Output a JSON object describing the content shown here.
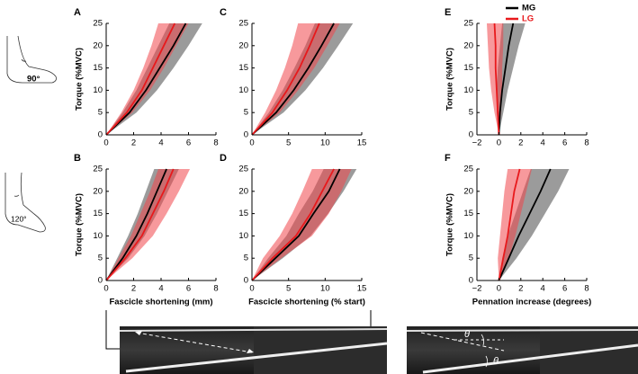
{
  "legend": [
    {
      "name": "MG",
      "color": "#000000"
    },
    {
      "name": "LG",
      "color": "#e8191c"
    }
  ],
  "angles": [
    "90°",
    "120°"
  ],
  "theta_labels": [
    "θ",
    "θ"
  ],
  "chart_data": [
    {
      "type": "line",
      "label": "A",
      "ylabel": "Torque (%MVC)",
      "xlim": [
        0,
        8
      ],
      "xticks": [
        0,
        2,
        4,
        6,
        8
      ],
      "ylim": [
        0,
        25
      ],
      "yticks": [
        0,
        5,
        10,
        15,
        20,
        25
      ],
      "y": [
        0,
        5,
        10,
        15,
        20,
        25
      ],
      "series": [
        {
          "name": "MG",
          "color": "#000000",
          "values": [
            0,
            1.7,
            2.9,
            3.9,
            4.9,
            5.8
          ],
          "lower": [
            0,
            1.2,
            2.2,
            3.0,
            3.8,
            4.6
          ],
          "upper": [
            0,
            2.2,
            3.7,
            4.9,
            6.0,
            7.0
          ]
        },
        {
          "name": "LG",
          "color": "#e8191c",
          "values": [
            0,
            1.5,
            2.6,
            3.4,
            4.2,
            5.0
          ],
          "lower": [
            0,
            1.1,
            2.0,
            2.7,
            3.3,
            3.8
          ],
          "upper": [
            0,
            1.9,
            3.2,
            4.2,
            5.1,
            6.0
          ]
        }
      ]
    },
    {
      "type": "line",
      "label": "C",
      "xlim": [
        0,
        15
      ],
      "xticks": [
        0,
        5,
        10,
        15
      ],
      "ylim": [
        0,
        25
      ],
      "yticks": [
        0,
        5,
        10,
        15,
        20,
        25
      ],
      "y": [
        0,
        5,
        10,
        15,
        20,
        25
      ],
      "series": [
        {
          "name": "MG",
          "color": "#000000",
          "values": [
            0,
            3.3,
            5.7,
            7.7,
            9.5,
            11.2
          ],
          "lower": [
            0,
            2.3,
            4.2,
            5.8,
            7.3,
            8.6
          ],
          "upper": [
            0,
            4.3,
            7.3,
            9.7,
            11.8,
            13.8
          ]
        },
        {
          "name": "LG",
          "color": "#e8191c",
          "values": [
            0,
            2.8,
            4.8,
            6.5,
            7.9,
            9.2
          ],
          "lower": [
            0,
            1.8,
            3.3,
            4.5,
            5.5,
            6.3
          ],
          "upper": [
            0,
            3.8,
            6.3,
            8.5,
            10.3,
            12.0
          ]
        }
      ]
    },
    {
      "type": "line",
      "label": "E",
      "ylabel": "Torque (%MVC)",
      "xlim": [
        -2,
        8
      ],
      "xticks": [
        {
          "value": -2,
          "label": "−2"
        },
        0,
        2,
        4,
        6,
        8
      ],
      "ylim": [
        0,
        25
      ],
      "yticks": [
        0,
        5,
        10,
        15,
        20,
        25
      ],
      "y": [
        0,
        5,
        10,
        15,
        20,
        25
      ],
      "series": [
        {
          "name": "MG",
          "color": "#000000",
          "values": [
            0,
            0.1,
            0.3,
            0.6,
            0.9,
            1.3
          ],
          "lower": [
            0,
            -0.2,
            -0.2,
            -0.1,
            0.1,
            0.3
          ],
          "upper": [
            0,
            0.4,
            0.8,
            1.3,
            1.8,
            2.4
          ]
        },
        {
          "name": "LG",
          "color": "#e8191c",
          "values": [
            0,
            -0.1,
            -0.2,
            -0.3,
            -0.3,
            -0.4
          ],
          "lower": [
            0,
            -0.4,
            -0.7,
            -0.9,
            -1.0,
            -1.1
          ],
          "upper": [
            0,
            0.2,
            0.3,
            0.3,
            0.4,
            0.4
          ]
        }
      ]
    },
    {
      "type": "line",
      "label": "B",
      "ylabel": "Torque (%MVC)",
      "xlabel": "Fascicle shortening (mm)",
      "xlim": [
        0,
        8
      ],
      "xticks": [
        0,
        2,
        4,
        6,
        8
      ],
      "ylim": [
        0,
        25
      ],
      "yticks": [
        0,
        5,
        10,
        15,
        20,
        25
      ],
      "y": [
        0,
        5,
        10,
        15,
        20,
        25
      ],
      "series": [
        {
          "name": "MG",
          "color": "#000000",
          "values": [
            0,
            1.2,
            2.2,
            3.0,
            3.7,
            4.4
          ],
          "lower": [
            0,
            0.8,
            1.6,
            2.3,
            2.9,
            3.5
          ],
          "upper": [
            0,
            1.6,
            2.8,
            3.7,
            4.5,
            5.3
          ]
        },
        {
          "name": "LG",
          "color": "#e8191c",
          "values": [
            0,
            1.4,
            2.6,
            3.4,
            4.2,
            4.9
          ],
          "lower": [
            0,
            0.9,
            1.8,
            2.5,
            3.2,
            3.8
          ],
          "upper": [
            0,
            1.9,
            3.4,
            4.4,
            5.3,
            6.1
          ]
        }
      ]
    },
    {
      "type": "line",
      "label": "D",
      "xlabel": "Fascicle shortening (% start)",
      "xlim": [
        0,
        15
      ],
      "xticks": [
        0,
        5,
        10,
        15
      ],
      "ylim": [
        0,
        25
      ],
      "yticks": [
        0,
        5,
        10,
        15,
        20,
        25
      ],
      "y": [
        0,
        5,
        10,
        15,
        20,
        25
      ],
      "series": [
        {
          "name": "MG",
          "color": "#000000",
          "values": [
            0,
            3.2,
            6.4,
            8.4,
            10.5,
            12.0
          ],
          "lower": [
            0,
            2.2,
            4.7,
            6.4,
            8.3,
            9.8
          ],
          "upper": [
            0,
            4.2,
            8.0,
            10.4,
            12.5,
            14.3
          ]
        },
        {
          "name": "LG",
          "color": "#e8191c",
          "values": [
            0,
            2.8,
            6.0,
            8.0,
            9.6,
            11.2
          ],
          "lower": [
            0,
            1.5,
            3.8,
            5.5,
            6.9,
            8.2
          ],
          "upper": [
            0,
            4.0,
            8.2,
            10.5,
            12.2,
            13.6
          ]
        }
      ]
    },
    {
      "type": "line",
      "label": "F",
      "ylabel": "Torque (%MVC)",
      "xlabel": "Pennation increase (degrees)",
      "xlim": [
        -2,
        8
      ],
      "xticks": [
        {
          "value": -2,
          "label": "−2"
        },
        0,
        2,
        4,
        6,
        8
      ],
      "ylim": [
        0,
        25
      ],
      "yticks": [
        0,
        5,
        10,
        15,
        20,
        25
      ],
      "y": [
        0,
        5,
        10,
        15,
        20,
        25
      ],
      "series": [
        {
          "name": "MG",
          "color": "#000000",
          "values": [
            0,
            0.9,
            1.8,
            2.8,
            3.8,
            4.7
          ],
          "lower": [
            0,
            0.3,
            0.8,
            1.5,
            2.2,
            2.9
          ],
          "upper": [
            0,
            1.6,
            3.0,
            4.2,
            5.4,
            6.4
          ]
        },
        {
          "name": "LG",
          "color": "#e8191c",
          "values": [
            0,
            0.4,
            0.8,
            1.1,
            1.4,
            1.9
          ],
          "lower": [
            0,
            -0.1,
            0.1,
            0.3,
            0.5,
            0.8
          ],
          "upper": [
            0,
            0.9,
            1.5,
            2.0,
            2.5,
            3.0
          ]
        }
      ]
    }
  ]
}
